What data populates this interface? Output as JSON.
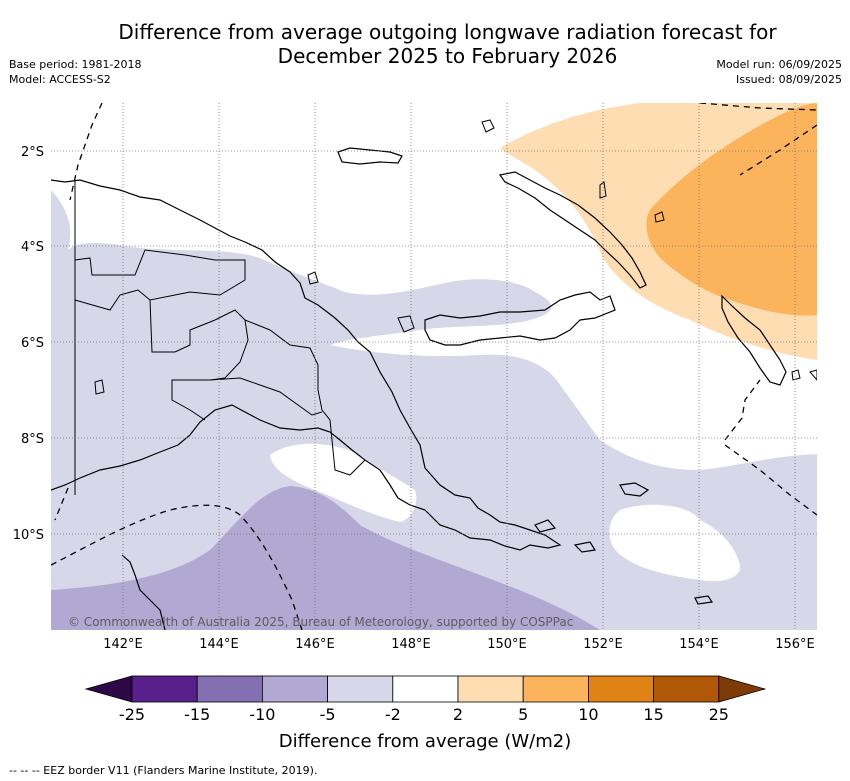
{
  "title": {
    "line1": "Difference from average outgoing longwave radiation forecast for",
    "line2": "December 2025 to February 2026"
  },
  "meta": {
    "base_period": "Base period: 1981-2018",
    "model": "Model: ACCESS-S2",
    "model_run": "Model run: 06/09/2025",
    "issued": "Issued: 08/09/2025"
  },
  "map": {
    "lat_labels": [
      "2°S",
      "4°S",
      "6°S",
      "8°S",
      "10°S"
    ],
    "lon_labels": [
      "142°E",
      "144°E",
      "146°E",
      "148°E",
      "150°E",
      "152°E",
      "154°E",
      "156°E"
    ],
    "copyright": "© Commonwealth of Australia 2025, Bureau of Meteorology, supported by COSPPac",
    "colors": {
      "light_purple": "#d7d7ea",
      "mid_purple": "#b1a9d2",
      "light_orange": "#fdddb1",
      "mid_orange": "#fbb45c"
    }
  },
  "colorbar": {
    "ticks": [
      "-25",
      "-15",
      "-10",
      "-5",
      "-2",
      "2",
      "5",
      "10",
      "15",
      "25"
    ],
    "colors": [
      "#2d0846",
      "#57208a",
      "#8270b0",
      "#b1a9d2",
      "#d7d7ea",
      "#ffffff",
      "#fdddb1",
      "#fbb45c",
      "#e08315",
      "#b05808",
      "#7f3b07"
    ],
    "label": "Difference from average (W/m2)"
  },
  "footer": {
    "eez_legend": "--  --  -- EEZ border V11 (Flanders Marine Institute, 2019)."
  }
}
